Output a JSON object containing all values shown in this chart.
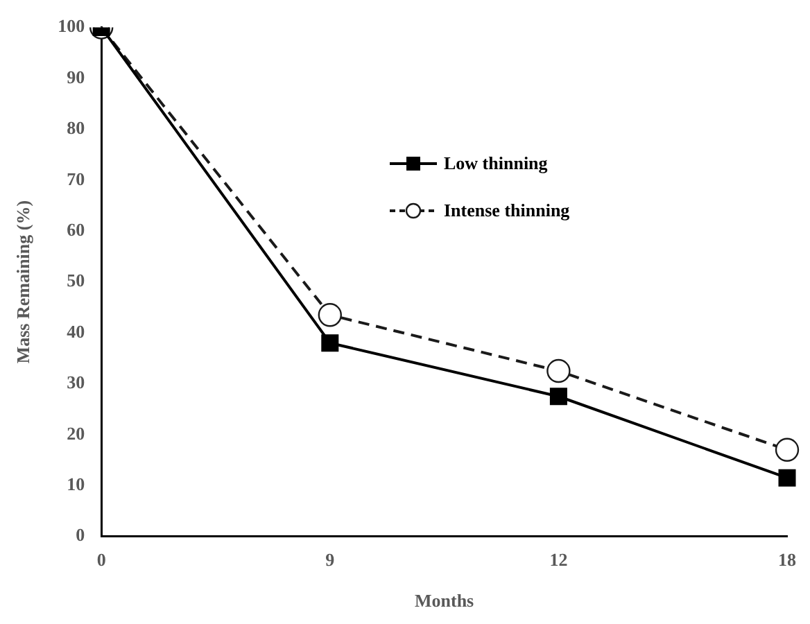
{
  "chart_data": {
    "type": "line",
    "xlabel": "Months",
    "ylabel": "Mass Remaining (%)",
    "categories": [
      "0",
      "9",
      "12",
      "18"
    ],
    "series": [
      {
        "name": "Low thinning",
        "color": "#000000",
        "values": [
          100,
          38,
          27.5,
          11.5
        ],
        "marker": "square",
        "line_style": "solid"
      },
      {
        "name": "Intense thinning",
        "color": "#1a1a1a",
        "values": [
          100,
          43.5,
          32.5,
          17
        ],
        "marker": "circle",
        "line_style": "dashed"
      }
    ],
    "ylim": [
      0,
      100
    ],
    "yticks": [
      0,
      10,
      20,
      30,
      40,
      50,
      60,
      70,
      80,
      90,
      100
    ],
    "grid": false,
    "legend": "top"
  }
}
